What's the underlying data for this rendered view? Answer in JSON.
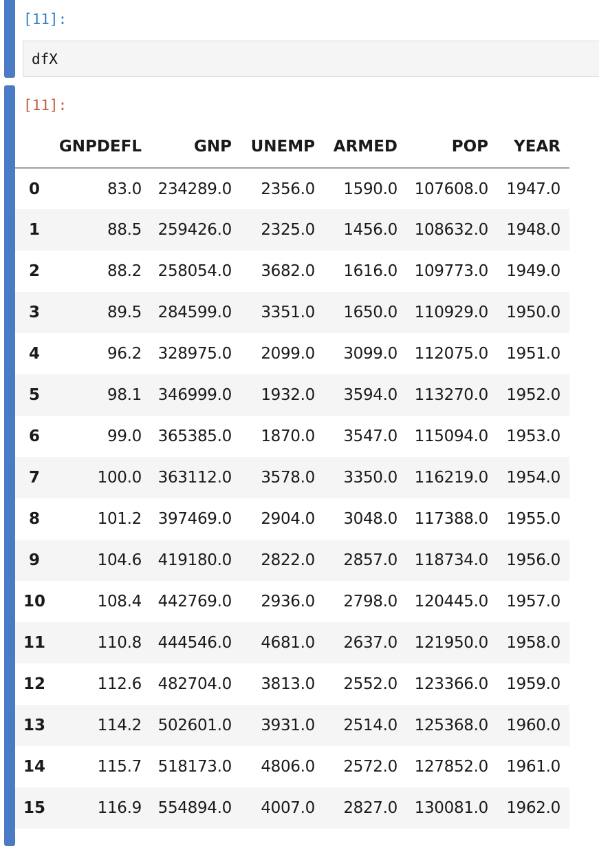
{
  "input_cell": {
    "prompt": "[11]:",
    "code": "dfX"
  },
  "output_cell": {
    "prompt": "[11]:"
  },
  "table": {
    "columns": [
      "GNPDEFL",
      "GNP",
      "UNEMP",
      "ARMED",
      "POP",
      "YEAR"
    ],
    "rows": [
      {
        "index": "0",
        "cells": [
          "83.0",
          "234289.0",
          "2356.0",
          "1590.0",
          "107608.0",
          "1947.0"
        ]
      },
      {
        "index": "1",
        "cells": [
          "88.5",
          "259426.0",
          "2325.0",
          "1456.0",
          "108632.0",
          "1948.0"
        ]
      },
      {
        "index": "2",
        "cells": [
          "88.2",
          "258054.0",
          "3682.0",
          "1616.0",
          "109773.0",
          "1949.0"
        ]
      },
      {
        "index": "3",
        "cells": [
          "89.5",
          "284599.0",
          "3351.0",
          "1650.0",
          "110929.0",
          "1950.0"
        ]
      },
      {
        "index": "4",
        "cells": [
          "96.2",
          "328975.0",
          "2099.0",
          "3099.0",
          "112075.0",
          "1951.0"
        ]
      },
      {
        "index": "5",
        "cells": [
          "98.1",
          "346999.0",
          "1932.0",
          "3594.0",
          "113270.0",
          "1952.0"
        ]
      },
      {
        "index": "6",
        "cells": [
          "99.0",
          "365385.0",
          "1870.0",
          "3547.0",
          "115094.0",
          "1953.0"
        ]
      },
      {
        "index": "7",
        "cells": [
          "100.0",
          "363112.0",
          "3578.0",
          "3350.0",
          "116219.0",
          "1954.0"
        ]
      },
      {
        "index": "8",
        "cells": [
          "101.2",
          "397469.0",
          "2904.0",
          "3048.0",
          "117388.0",
          "1955.0"
        ]
      },
      {
        "index": "9",
        "cells": [
          "104.6",
          "419180.0",
          "2822.0",
          "2857.0",
          "118734.0",
          "1956.0"
        ]
      },
      {
        "index": "10",
        "cells": [
          "108.4",
          "442769.0",
          "2936.0",
          "2798.0",
          "120445.0",
          "1957.0"
        ]
      },
      {
        "index": "11",
        "cells": [
          "110.8",
          "444546.0",
          "4681.0",
          "2637.0",
          "121950.0",
          "1958.0"
        ]
      },
      {
        "index": "12",
        "cells": [
          "112.6",
          "482704.0",
          "3813.0",
          "2552.0",
          "123366.0",
          "1959.0"
        ]
      },
      {
        "index": "13",
        "cells": [
          "114.2",
          "502601.0",
          "3931.0",
          "2514.0",
          "125368.0",
          "1960.0"
        ]
      },
      {
        "index": "14",
        "cells": [
          "115.7",
          "518173.0",
          "4806.0",
          "2572.0",
          "127852.0",
          "1961.0"
        ]
      },
      {
        "index": "15",
        "cells": [
          "116.9",
          "554894.0",
          "4007.0",
          "2827.0",
          "130081.0",
          "1962.0"
        ]
      }
    ]
  },
  "colors": {
    "cell_bar": "#4c7bc6",
    "in_prompt": "#307fc1",
    "out_prompt": "#bf5b3d",
    "code_bg": "#f5f5f5",
    "row_stripe": "#f5f5f5"
  }
}
